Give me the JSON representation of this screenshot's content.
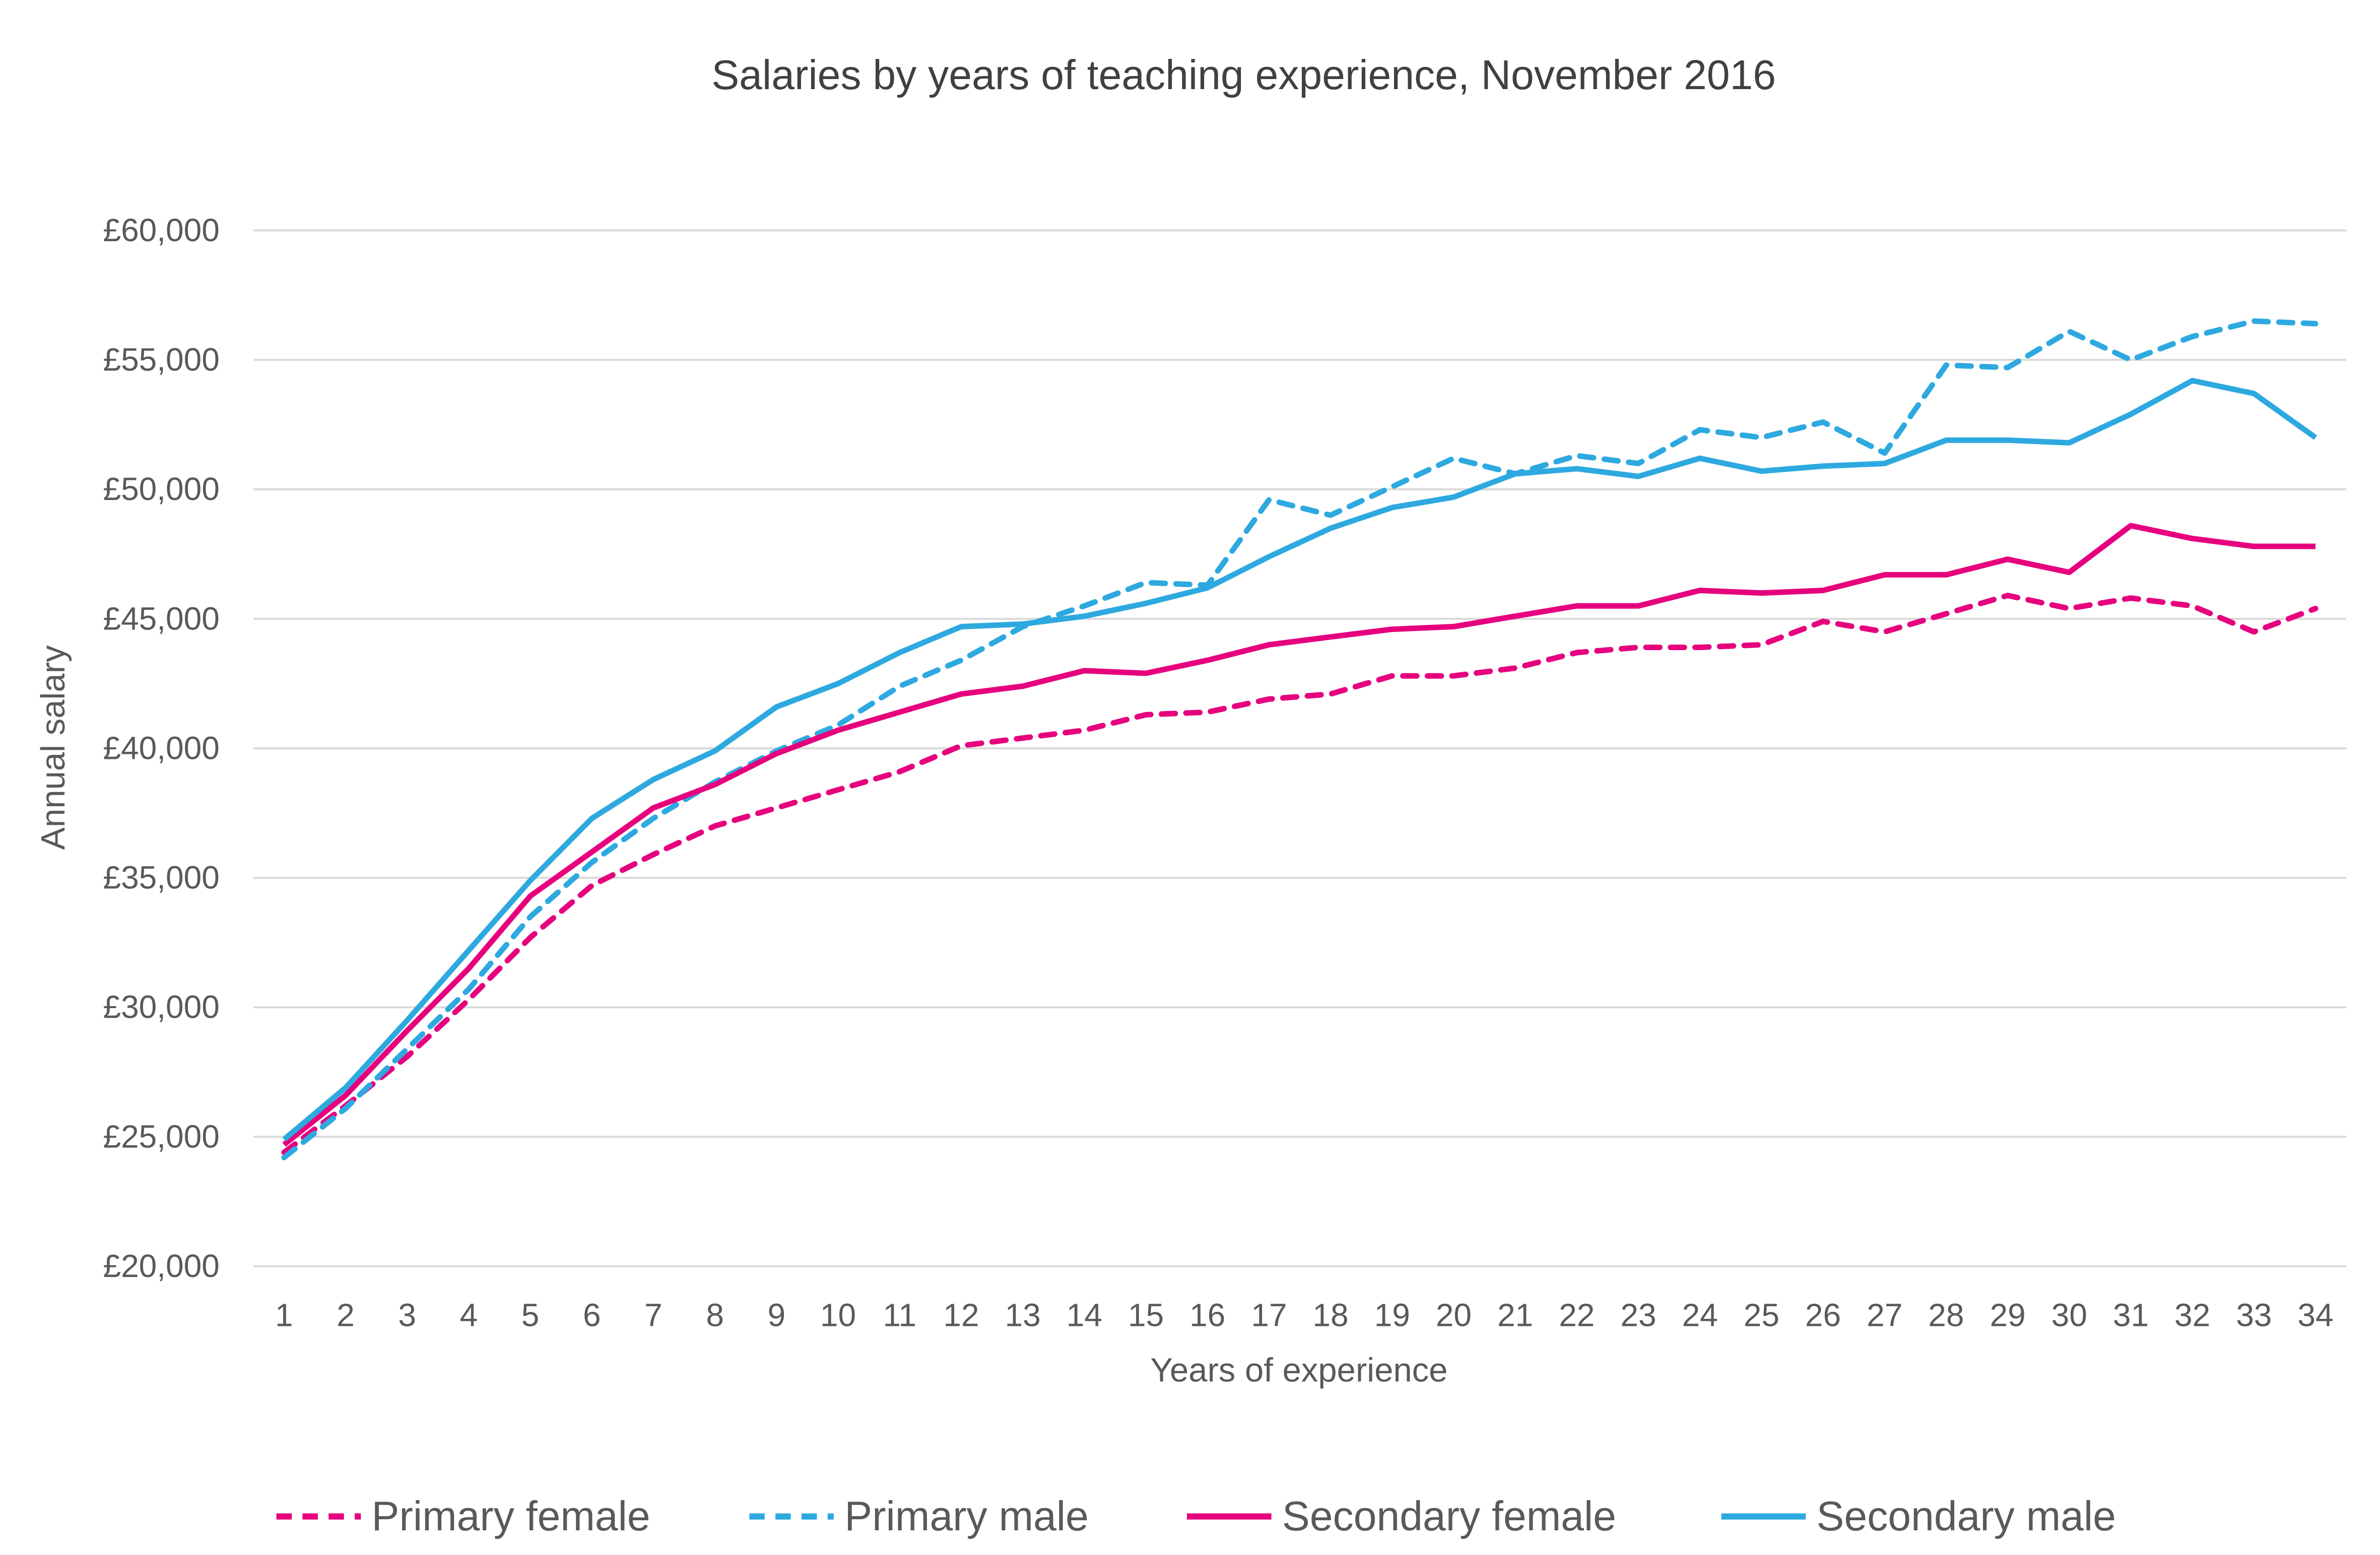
{
  "chart_data": {
    "type": "line",
    "title": "Salaries by years of teaching experience, November 2016",
    "xlabel": "Years of experience",
    "ylabel": "Annual salary",
    "x": [
      1,
      2,
      3,
      4,
      5,
      6,
      7,
      8,
      9,
      10,
      11,
      12,
      13,
      14,
      15,
      16,
      17,
      18,
      19,
      20,
      21,
      22,
      23,
      24,
      25,
      26,
      27,
      28,
      29,
      30,
      31,
      32,
      33,
      34
    ],
    "ylim": [
      20000,
      60000
    ],
    "yticks": [
      20000,
      25000,
      30000,
      35000,
      40000,
      45000,
      50000,
      55000,
      60000
    ],
    "ytick_labels": [
      "£20,000",
      "£25,000",
      "£30,000",
      "£35,000",
      "£40,000",
      "£45,000",
      "£50,000",
      "£55,000",
      "£60,000"
    ],
    "grid": "horizontal",
    "legend_position": "bottom",
    "series": [
      {
        "name": "Primary female",
        "color": "#E6007E",
        "style": "dashed",
        "values": [
          24400,
          26200,
          28100,
          30300,
          32700,
          34700,
          35900,
          37000,
          37700,
          38400,
          39100,
          40100,
          40400,
          40700,
          41300,
          41400,
          41900,
          42100,
          42800,
          42800,
          43100,
          43700,
          43900,
          43900,
          44000,
          44900,
          44500,
          45200,
          45900,
          45400,
          45800,
          45500,
          44500,
          45400
        ]
      },
      {
        "name": "Primary male",
        "color": "#2EA9E0",
        "style": "dashed",
        "values": [
          24200,
          26100,
          28400,
          30700,
          33500,
          35600,
          37300,
          38700,
          39900,
          40900,
          42400,
          43400,
          44700,
          45500,
          46400,
          46300,
          49600,
          49000,
          50100,
          51200,
          50600,
          51300,
          51000,
          52300,
          52000,
          52600,
          51400,
          54800,
          54700,
          56100,
          55000,
          55900,
          56500,
          56400
        ]
      },
      {
        "name": "Secondary female",
        "color": "#E6007E",
        "style": "solid",
        "values": [
          24700,
          26600,
          29100,
          31500,
          34300,
          36000,
          37700,
          38600,
          39800,
          40700,
          41400,
          42100,
          42400,
          43000,
          42900,
          43400,
          44000,
          44300,
          44600,
          44700,
          45100,
          45500,
          45500,
          46100,
          46000,
          46100,
          46700,
          46700,
          47300,
          46800,
          48600,
          48100,
          47800,
          47800
        ]
      },
      {
        "name": "Secondary male",
        "color": "#2EA9E0",
        "style": "solid",
        "values": [
          24900,
          26900,
          29500,
          32200,
          34900,
          37300,
          38800,
          39900,
          41600,
          42500,
          43700,
          44700,
          44800,
          45100,
          45600,
          46200,
          47400,
          48500,
          49300,
          49700,
          50600,
          50800,
          50500,
          51200,
          50700,
          50900,
          51000,
          51900,
          51900,
          51800,
          52900,
          54200,
          53700,
          52000
        ]
      }
    ]
  }
}
